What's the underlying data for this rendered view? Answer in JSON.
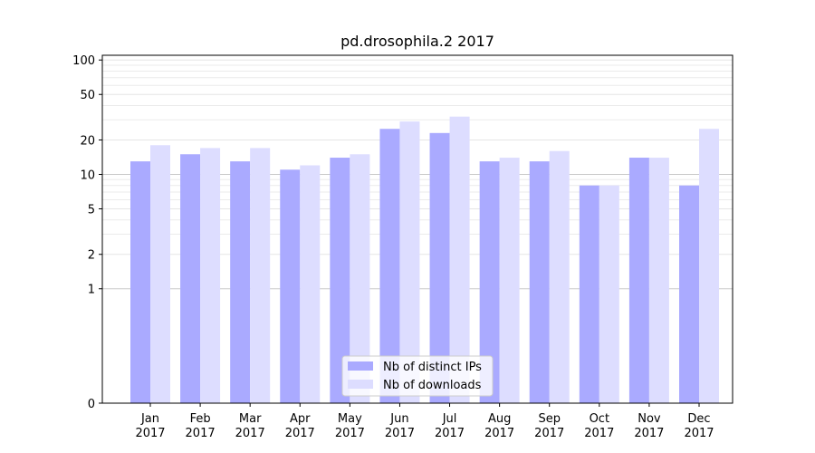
{
  "chart_data": {
    "type": "bar",
    "title": "pd.drosophila.2 2017",
    "xlabel": "",
    "ylabel": "",
    "categories": [
      [
        "Jan",
        "2017"
      ],
      [
        "Feb",
        "2017"
      ],
      [
        "Mar",
        "2017"
      ],
      [
        "Apr",
        "2017"
      ],
      [
        "May",
        "2017"
      ],
      [
        "Jun",
        "2017"
      ],
      [
        "Jul",
        "2017"
      ],
      [
        "Aug",
        "2017"
      ],
      [
        "Sep",
        "2017"
      ],
      [
        "Oct",
        "2017"
      ],
      [
        "Nov",
        "2017"
      ],
      [
        "Dec",
        "2017"
      ]
    ],
    "series": [
      {
        "name": "Nb of distinct IPs",
        "color": "#aaaaff",
        "values": [
          13,
          15,
          13,
          11,
          14,
          25,
          23,
          13,
          13,
          8,
          14,
          8
        ]
      },
      {
        "name": "Nb of downloads",
        "color": "#ddddff",
        "values": [
          18,
          17,
          17,
          12,
          15,
          29,
          32,
          14,
          16,
          8,
          14,
          25
        ]
      }
    ],
    "yscale": "symlog",
    "ylim": [
      0,
      110
    ],
    "yticks": [
      0,
      1,
      2,
      5,
      10,
      20,
      50,
      100
    ],
    "grid": true,
    "legend_position": "lower center"
  }
}
